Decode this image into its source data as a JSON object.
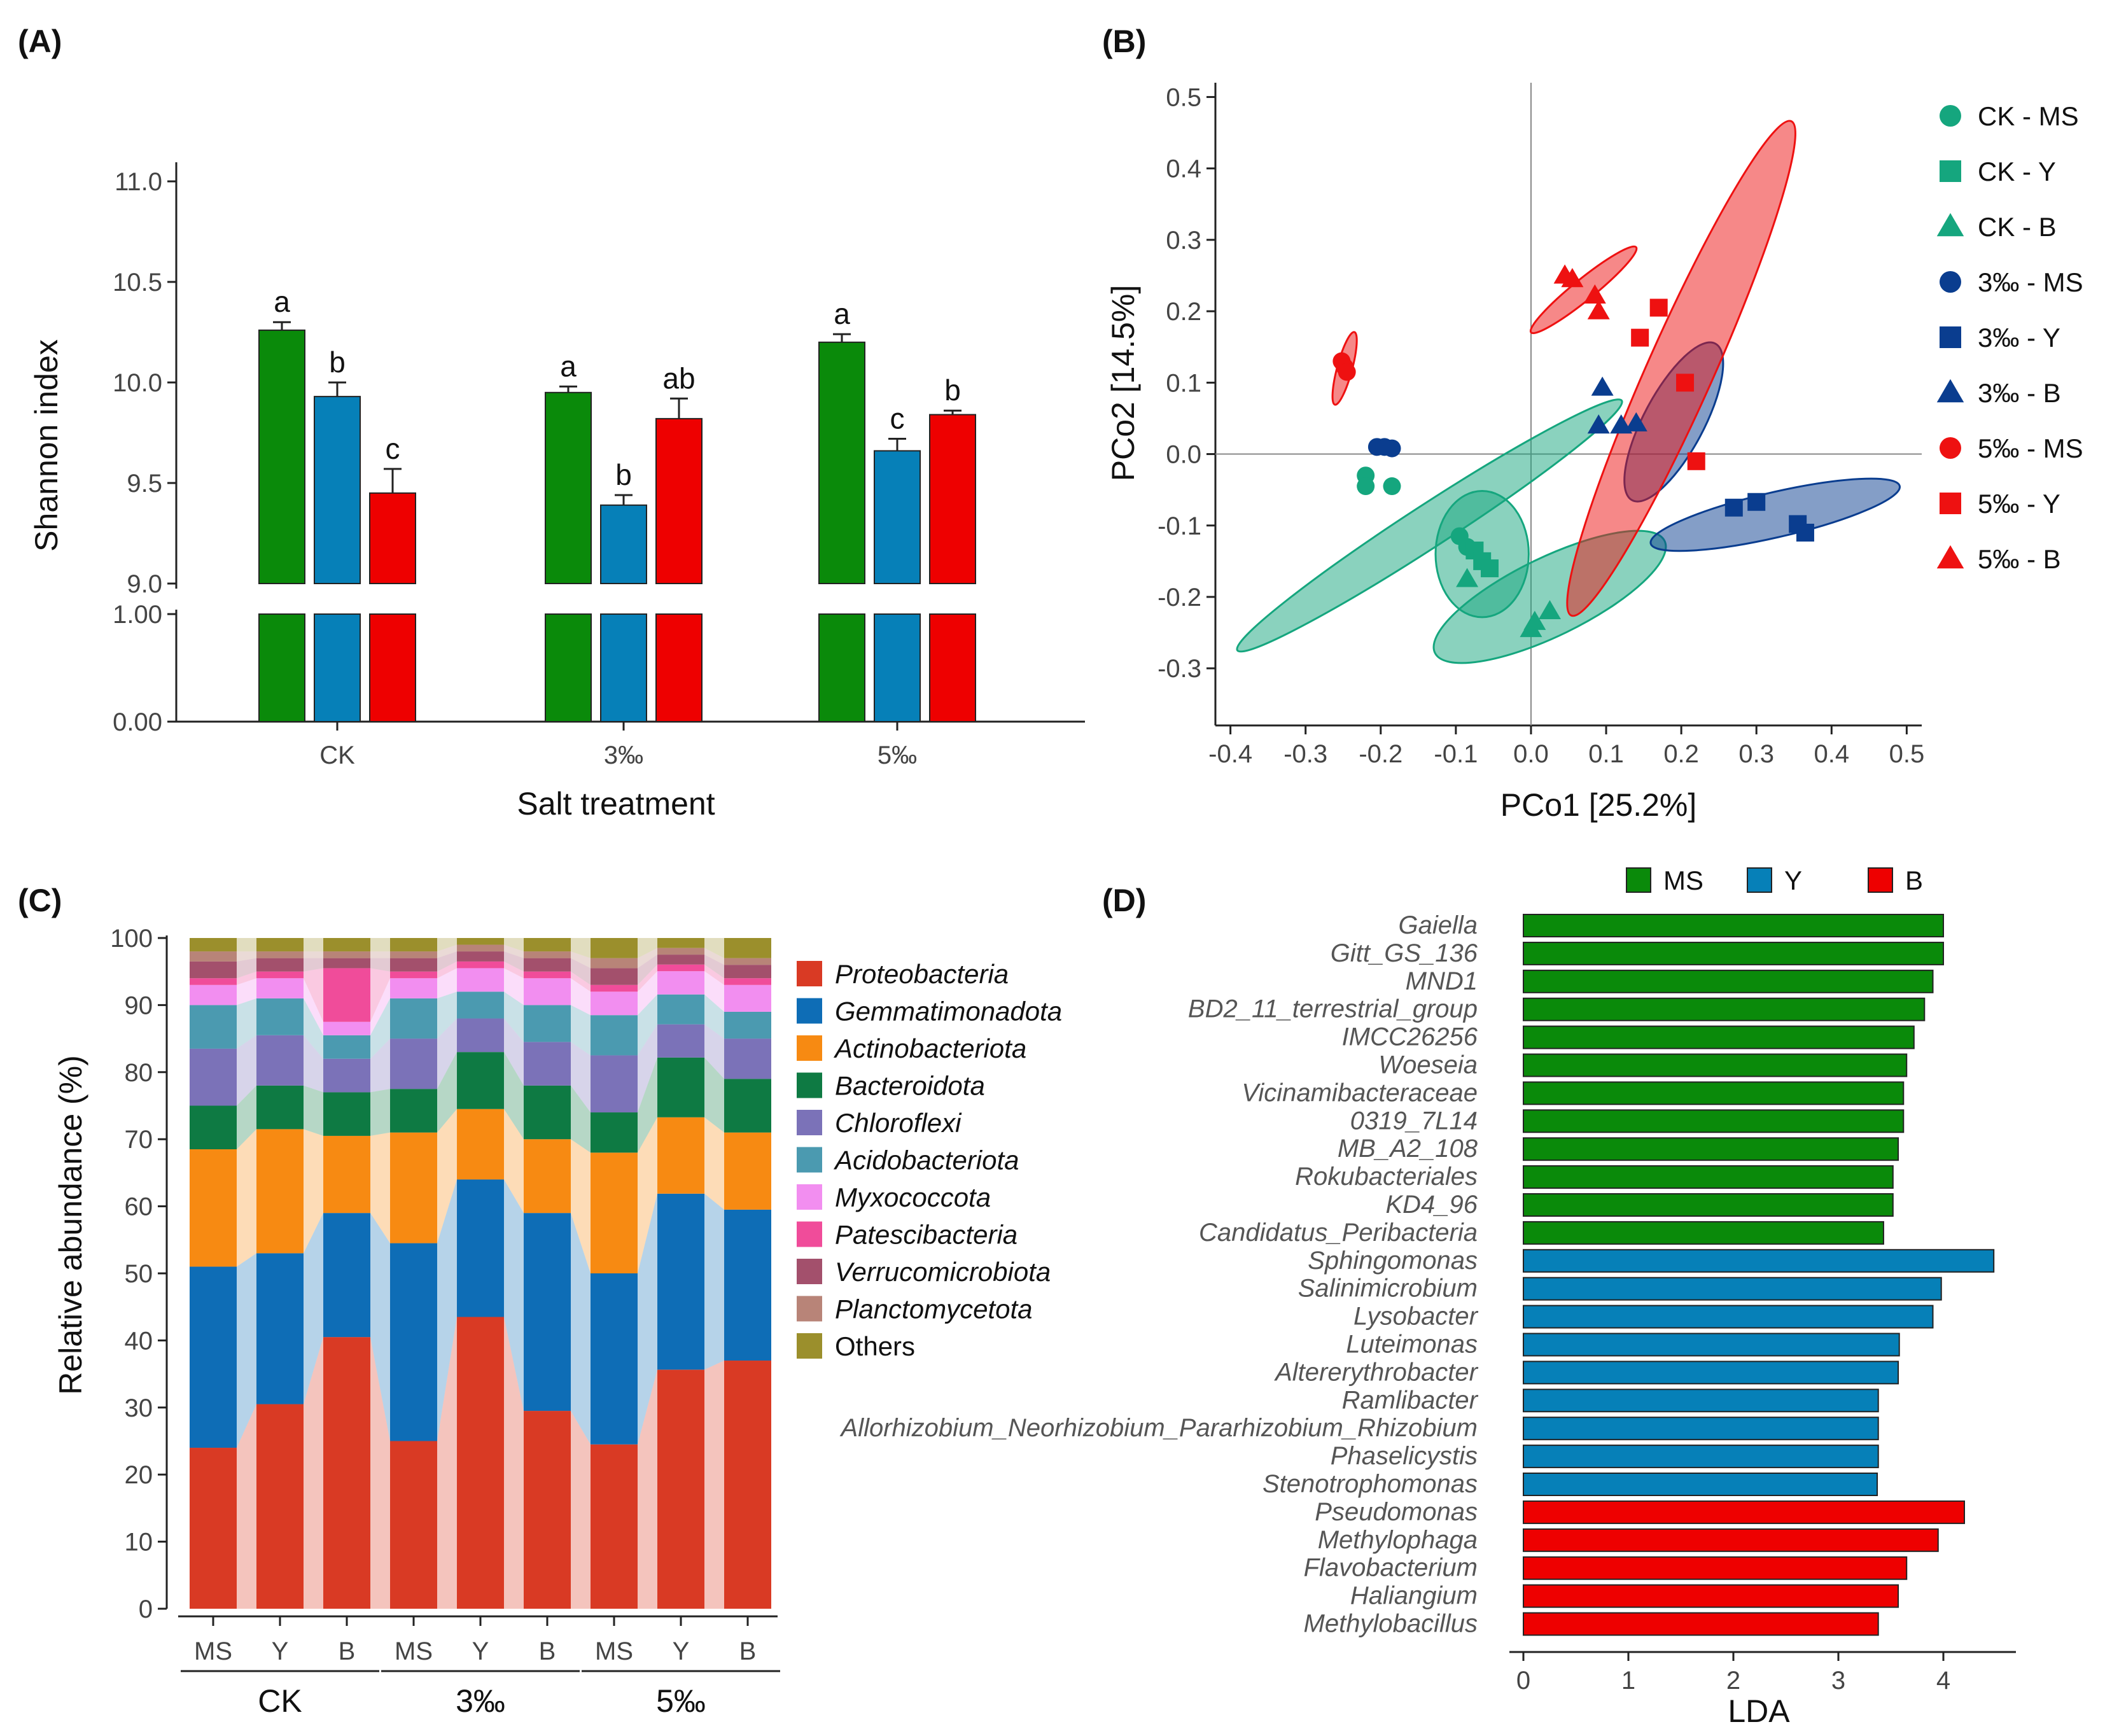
{
  "chart_data": [
    {
      "panel": "(A)",
      "type": "bar",
      "ylabel": "Shannon index",
      "xlabel": "Salt treatment",
      "categories": [
        "CK",
        "3‰",
        "5‰"
      ],
      "yticks_upper": [
        "11.0",
        "10.5",
        "10.0",
        "9.5",
        "9.0"
      ],
      "yticks_lower": [
        "1.00",
        "0.00"
      ],
      "ylim_upper": [
        9.0,
        11.0
      ],
      "ylim_lower": [
        0,
        1
      ],
      "axis_break": true,
      "series": [
        {
          "name": "MS",
          "color": "#0a8a0a",
          "values": [
            10.26,
            9.95,
            10.2
          ],
          "errors": [
            0.04,
            0.03,
            0.04
          ],
          "letters": [
            "a",
            "a",
            "a"
          ]
        },
        {
          "name": "Y",
          "color": "#0680b8",
          "values": [
            9.93,
            9.39,
            9.66
          ],
          "errors": [
            0.07,
            0.05,
            0.06
          ],
          "letters": [
            "b",
            "b",
            "c"
          ]
        },
        {
          "name": "B",
          "color": "#ee0000",
          "values": [
            9.45,
            9.82,
            9.84
          ],
          "errors": [
            0.12,
            0.1,
            0.02
          ],
          "letters": [
            "c",
            "ab",
            "b"
          ]
        }
      ]
    },
    {
      "panel": "(B)",
      "type": "scatter",
      "xlabel": "PCo1 [25.2%]",
      "ylabel": "PCo2 [14.5%]",
      "xlim": [
        -0.42,
        0.52
      ],
      "ylim": [
        -0.38,
        0.52
      ],
      "xticks": [
        "-0.4",
        "-0.3",
        "-0.2",
        "-0.1",
        "0.0",
        "0.1",
        "0.2",
        "0.3",
        "0.4",
        "0.5"
      ],
      "yticks": [
        "0.5",
        "0.4",
        "0.3",
        "0.2",
        "0.1",
        "0.0",
        "-0.1",
        "-0.2",
        "-0.3"
      ],
      "legend": [
        {
          "label": "CK - MS",
          "color": "#15a67e",
          "shape": "circle"
        },
        {
          "label": "CK - Y",
          "color": "#15a67e",
          "shape": "square"
        },
        {
          "label": "CK - B",
          "color": "#15a67e",
          "shape": "triangle"
        },
        {
          "label": "3‰ - MS",
          "color": "#0a3d8f",
          "shape": "circle"
        },
        {
          "label": "3‰ - Y",
          "color": "#0a3d8f",
          "shape": "square"
        },
        {
          "label": "3‰ - B",
          "color": "#0a3d8f",
          "shape": "triangle"
        },
        {
          "label": "5‰ - MS",
          "color": "#ee1111",
          "shape": "circle"
        },
        {
          "label": "5‰ - Y",
          "color": "#ee1111",
          "shape": "square"
        },
        {
          "label": "5‰ - B",
          "color": "#ee1111",
          "shape": "triangle"
        }
      ],
      "points": [
        {
          "g": 0,
          "x": -0.22,
          "y": -0.03
        },
        {
          "g": 0,
          "x": -0.22,
          "y": -0.045
        },
        {
          "g": 0,
          "x": -0.185,
          "y": -0.045
        },
        {
          "g": 0,
          "x": -0.095,
          "y": -0.115
        },
        {
          "g": 0,
          "x": -0.085,
          "y": -0.13
        },
        {
          "g": 1,
          "x": -0.075,
          "y": -0.135
        },
        {
          "g": 1,
          "x": -0.065,
          "y": -0.15
        },
        {
          "g": 1,
          "x": -0.055,
          "y": -0.16
        },
        {
          "g": 2,
          "x": -0.085,
          "y": -0.175
        },
        {
          "g": 2,
          "x": 0.0,
          "y": -0.245
        },
        {
          "g": 2,
          "x": 0.005,
          "y": -0.235
        },
        {
          "g": 2,
          "x": 0.025,
          "y": -0.22
        },
        {
          "g": 3,
          "x": -0.205,
          "y": 0.01
        },
        {
          "g": 3,
          "x": -0.195,
          "y": 0.01
        },
        {
          "g": 3,
          "x": -0.185,
          "y": 0.008
        },
        {
          "g": 4,
          "x": 0.27,
          "y": -0.075
        },
        {
          "g": 4,
          "x": 0.3,
          "y": -0.067
        },
        {
          "g": 4,
          "x": 0.355,
          "y": -0.098
        },
        {
          "g": 4,
          "x": 0.365,
          "y": -0.11
        },
        {
          "g": 5,
          "x": 0.095,
          "y": 0.093
        },
        {
          "g": 5,
          "x": 0.09,
          "y": 0.04
        },
        {
          "g": 5,
          "x": 0.12,
          "y": 0.04
        },
        {
          "g": 5,
          "x": 0.14,
          "y": 0.043
        },
        {
          "g": 6,
          "x": -0.252,
          "y": 0.13
        },
        {
          "g": 6,
          "x": -0.248,
          "y": 0.122
        },
        {
          "g": 6,
          "x": -0.245,
          "y": 0.115
        },
        {
          "g": 7,
          "x": 0.17,
          "y": 0.205
        },
        {
          "g": 7,
          "x": 0.145,
          "y": 0.163
        },
        {
          "g": 7,
          "x": 0.205,
          "y": 0.1
        },
        {
          "g": 7,
          "x": 0.22,
          "y": -0.01
        },
        {
          "g": 8,
          "x": 0.045,
          "y": 0.25
        },
        {
          "g": 8,
          "x": 0.055,
          "y": 0.245
        },
        {
          "g": 8,
          "x": 0.085,
          "y": 0.222
        },
        {
          "g": 8,
          "x": 0.09,
          "y": 0.2
        }
      ],
      "ellipses": [
        {
          "color": "#15a67e",
          "cx": -0.135,
          "cy": -0.1,
          "rx": 0.305,
          "ry": 0.028,
          "rot_deg": -33
        },
        {
          "color": "#15a67e",
          "cx": -0.065,
          "cy": -0.14,
          "rx": 0.062,
          "ry": 0.084,
          "rot_deg": 0
        },
        {
          "color": "#15a67e",
          "cx": 0.025,
          "cy": -0.2,
          "rx": 0.17,
          "ry": 0.052,
          "rot_deg": -26
        },
        {
          "color": "#0a3d8f",
          "cx": 0.19,
          "cy": 0.045,
          "rx": 0.118,
          "ry": 0.04,
          "rot_deg": -62
        },
        {
          "color": "#0a3d8f",
          "cx": 0.325,
          "cy": -0.085,
          "rx": 0.17,
          "ry": 0.03,
          "rot_deg": -13
        },
        {
          "color": "#ee1111",
          "cx": 0.2,
          "cy": 0.12,
          "rx": 0.36,
          "ry": 0.044,
          "rot_deg": -66
        },
        {
          "color": "#ee1111",
          "cx": 0.07,
          "cy": 0.23,
          "rx": 0.09,
          "ry": 0.014,
          "rot_deg": -39
        },
        {
          "color": "#ee1111",
          "cx": -0.248,
          "cy": 0.12,
          "rx": 0.05,
          "ry": 0.01,
          "rot_deg": -75
        }
      ]
    },
    {
      "panel": "(C)",
      "type": "bar",
      "stacked": true,
      "ylabel": "Relative abundance (%)",
      "ylim": [
        0,
        100
      ],
      "yticks": [
        "100",
        "90",
        "80",
        "70",
        "60",
        "50",
        "40",
        "30",
        "20",
        "10",
        "0"
      ],
      "categories": [
        "MS",
        "Y",
        "B",
        "MS",
        "Y",
        "B",
        "MS",
        "Y",
        "B"
      ],
      "groups": [
        "CK",
        "3‰",
        "5‰"
      ],
      "series": [
        {
          "name": "Proteobacteria",
          "italic": true,
          "color": "#d93a24",
          "values": [
            24,
            30.5,
            40.5,
            25,
            43.5,
            29.5,
            24.5,
            36,
            37
          ]
        },
        {
          "name": "Gemmatimonadota",
          "italic": true,
          "color": "#0e6db6",
          "values": [
            27,
            22.5,
            18.5,
            29.5,
            20.5,
            29.5,
            25.5,
            26.5,
            22.5
          ]
        },
        {
          "name": "Actinobacteriota",
          "italic": true,
          "color": "#f78a12",
          "values": [
            17.5,
            18.5,
            11.5,
            16.5,
            10.5,
            11,
            18,
            11.5,
            11.5
          ]
        },
        {
          "name": "Bacteroidota",
          "italic": true,
          "color": "#0e7a43",
          "values": [
            6.5,
            6.5,
            6.5,
            6.5,
            8.5,
            8,
            6,
            9,
            8
          ]
        },
        {
          "name": "Chloroflexi",
          "italic": true,
          "color": "#7b72b8",
          "values": [
            8.5,
            7.5,
            5,
            7.5,
            5,
            6.5,
            8.5,
            5,
            6
          ]
        },
        {
          "name": "Acidobacteriota",
          "italic": true,
          "color": "#4b9ab0",
          "values": [
            6.5,
            5.5,
            3.5,
            6,
            4,
            5.5,
            6,
            4.5,
            4
          ]
        },
        {
          "name": "Myxococcota",
          "italic": true,
          "color": "#f28ef0",
          "values": [
            3,
            3,
            2,
            3,
            3.5,
            4,
            3.5,
            3.5,
            4
          ]
        },
        {
          "name": "Patescibacteria",
          "italic": true,
          "color": "#f04c9a",
          "values": [
            1,
            1,
            8,
            1,
            1,
            1,
            1,
            1,
            1
          ]
        },
        {
          "name": "Verrucomicrobiota",
          "italic": true,
          "color": "#a3506c",
          "values": [
            2.5,
            2,
            1.5,
            2,
            1.5,
            2,
            2.5,
            1.5,
            2
          ]
        },
        {
          "name": "Planctomycetota",
          "italic": true,
          "color": "#b88478",
          "values": [
            1.5,
            1,
            1,
            1,
            1,
            1,
            1.5,
            1,
            1
          ]
        },
        {
          "name": "Others",
          "italic": false,
          "color": "#9b8f2c",
          "values": [
            2,
            2,
            2,
            2,
            1,
            2,
            3,
            1.5,
            3
          ]
        }
      ]
    },
    {
      "panel": "(D)",
      "type": "bar",
      "orientation": "horizontal",
      "xlabel": "LDA",
      "xlim": [
        0,
        4.6
      ],
      "xticks": [
        "0",
        "1",
        "2",
        "3",
        "4"
      ],
      "legend": [
        {
          "label": "MS",
          "color": "#0a8a0a"
        },
        {
          "label": "Y",
          "color": "#0680b8"
        },
        {
          "label": "B",
          "color": "#ee0000"
        }
      ],
      "taxa": [
        {
          "name": "Gaiella",
          "group": 0,
          "lda": 4.0
        },
        {
          "name": "Gitt_GS_136",
          "group": 0,
          "lda": 4.0
        },
        {
          "name": "MND1",
          "group": 0,
          "lda": 3.9
        },
        {
          "name": "BD2_11_terrestrial_group",
          "group": 0,
          "lda": 3.82
        },
        {
          "name": "IMCC26256",
          "group": 0,
          "lda": 3.72
        },
        {
          "name": "Woeseia",
          "group": 0,
          "lda": 3.65
        },
        {
          "name": "Vicinamibacteraceae",
          "group": 0,
          "lda": 3.62
        },
        {
          "name": "0319_7L14",
          "group": 0,
          "lda": 3.62
        },
        {
          "name": "MB_A2_108",
          "group": 0,
          "lda": 3.57
        },
        {
          "name": "Rokubacteriales",
          "group": 0,
          "lda": 3.52
        },
        {
          "name": "KD4_96",
          "group": 0,
          "lda": 3.52
        },
        {
          "name": "Candidatus_Peribacteria",
          "group": 0,
          "lda": 3.43
        },
        {
          "name": "Sphingomonas",
          "group": 1,
          "lda": 4.48
        },
        {
          "name": "Salinimicrobium",
          "group": 1,
          "lda": 3.98
        },
        {
          "name": "Lysobacter",
          "group": 1,
          "lda": 3.9
        },
        {
          "name": "Luteimonas",
          "group": 1,
          "lda": 3.58
        },
        {
          "name": "Altererythrobacter",
          "group": 1,
          "lda": 3.57
        },
        {
          "name": "Ramlibacter",
          "group": 1,
          "lda": 3.38
        },
        {
          "name": "Allorhizobium_Neorhizobium_Pararhizobium_Rhizobium",
          "group": 1,
          "lda": 3.38
        },
        {
          "name": "Phaselicystis",
          "group": 1,
          "lda": 3.38
        },
        {
          "name": "Stenotrophomonas",
          "group": 1,
          "lda": 3.37
        },
        {
          "name": "Pseudomonas",
          "group": 2,
          "lda": 4.2
        },
        {
          "name": "Methylophaga",
          "group": 2,
          "lda": 3.95
        },
        {
          "name": "Flavobacterium",
          "group": 2,
          "lda": 3.65
        },
        {
          "name": "Haliangium",
          "group": 2,
          "lda": 3.57
        },
        {
          "name": "Methylobacillus",
          "group": 2,
          "lda": 3.38
        }
      ]
    }
  ]
}
